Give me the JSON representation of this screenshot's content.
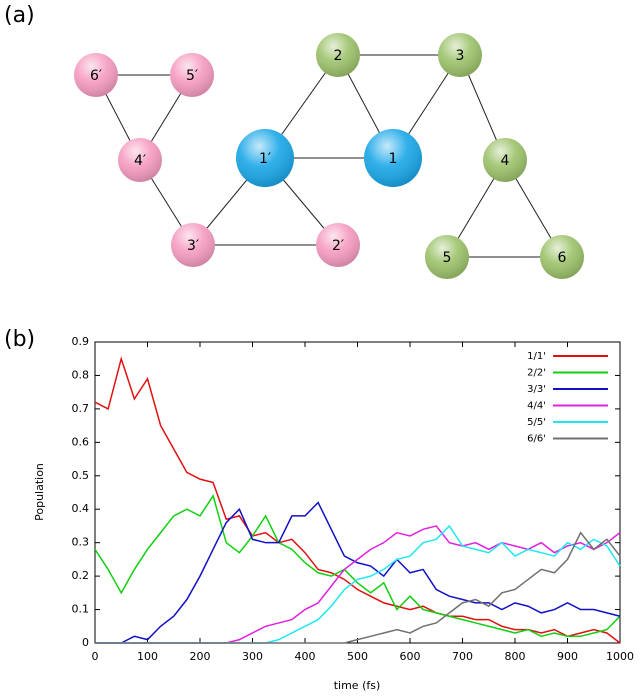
{
  "panel_a": {
    "label": "(a)",
    "nodes": [
      {
        "label": "6′",
        "color": "#f59bc0"
      },
      {
        "label": "5′",
        "color": "#f59bc0"
      },
      {
        "label": "4′",
        "color": "#f59bc0"
      },
      {
        "label": "3′",
        "color": "#f59bc0"
      },
      {
        "label": "2′",
        "color": "#f59bc0"
      },
      {
        "label": "1′",
        "color": "#1aa7e8"
      },
      {
        "label": "1",
        "color": "#1aa7e8"
      },
      {
        "label": "2",
        "color": "#9cc26a"
      },
      {
        "label": "3",
        "color": "#9cc26a"
      },
      {
        "label": "4",
        "color": "#9cc26a"
      },
      {
        "label": "5",
        "color": "#9cc26a"
      },
      {
        "label": "6",
        "color": "#9cc26a"
      }
    ]
  },
  "chart_data": {
    "type": "line",
    "panel_label": "(b)",
    "x_label": "time (fs)",
    "y_label": "Population",
    "x": [
      0,
      25,
      50,
      75,
      100,
      125,
      150,
      175,
      200,
      225,
      250,
      275,
      300,
      325,
      350,
      375,
      400,
      425,
      450,
      475,
      500,
      525,
      550,
      575,
      600,
      625,
      650,
      675,
      700,
      725,
      750,
      775,
      800,
      825,
      850,
      875,
      900,
      925,
      950,
      975,
      1000
    ],
    "series": [
      {
        "name": "1/1'",
        "color": "#e01010",
        "values": [
          0.72,
          0.7,
          0.85,
          0.73,
          0.79,
          0.65,
          0.58,
          0.51,
          0.49,
          0.48,
          0.37,
          0.38,
          0.32,
          0.33,
          0.3,
          0.31,
          0.27,
          0.22,
          0.21,
          0.19,
          0.16,
          0.14,
          0.12,
          0.11,
          0.1,
          0.11,
          0.09,
          0.08,
          0.08,
          0.07,
          0.07,
          0.05,
          0.04,
          0.04,
          0.03,
          0.04,
          0.02,
          0.03,
          0.04,
          0.03,
          0.0
        ]
      },
      {
        "name": "2/2'",
        "color": "#10d010",
        "values": [
          0.28,
          0.22,
          0.15,
          0.22,
          0.28,
          0.33,
          0.38,
          0.4,
          0.38,
          0.44,
          0.3,
          0.27,
          0.32,
          0.38,
          0.3,
          0.28,
          0.24,
          0.21,
          0.2,
          0.22,
          0.18,
          0.15,
          0.18,
          0.1,
          0.14,
          0.1,
          0.09,
          0.08,
          0.07,
          0.06,
          0.05,
          0.04,
          0.03,
          0.04,
          0.02,
          0.03,
          0.02,
          0.02,
          0.03,
          0.04,
          0.08
        ]
      },
      {
        "name": "3/3'",
        "color": "#1010c8",
        "values": [
          0,
          0,
          0,
          0.02,
          0.01,
          0.05,
          0.08,
          0.13,
          0.2,
          0.28,
          0.36,
          0.4,
          0.31,
          0.3,
          0.3,
          0.38,
          0.38,
          0.42,
          0.34,
          0.26,
          0.24,
          0.23,
          0.2,
          0.25,
          0.21,
          0.22,
          0.16,
          0.14,
          0.13,
          0.12,
          0.12,
          0.1,
          0.12,
          0.11,
          0.09,
          0.1,
          0.12,
          0.1,
          0.1,
          0.09,
          0.08
        ]
      },
      {
        "name": "4/4'",
        "color": "#e020e0",
        "values": [
          0,
          0,
          0,
          0,
          0,
          0,
          0,
          0,
          0,
          0,
          0,
          0.01,
          0.03,
          0.05,
          0.06,
          0.07,
          0.1,
          0.12,
          0.17,
          0.22,
          0.25,
          0.28,
          0.3,
          0.33,
          0.32,
          0.34,
          0.35,
          0.3,
          0.29,
          0.3,
          0.28,
          0.3,
          0.29,
          0.28,
          0.3,
          0.27,
          0.29,
          0.3,
          0.28,
          0.3,
          0.33
        ]
      },
      {
        "name": "5/5'",
        "color": "#20e8f0",
        "values": [
          0,
          0,
          0,
          0,
          0,
          0,
          0,
          0,
          0,
          0,
          0,
          0,
          0,
          0,
          0.01,
          0.03,
          0.05,
          0.07,
          0.11,
          0.16,
          0.19,
          0.2,
          0.22,
          0.25,
          0.26,
          0.3,
          0.31,
          0.35,
          0.29,
          0.28,
          0.27,
          0.3,
          0.26,
          0.28,
          0.27,
          0.26,
          0.3,
          0.28,
          0.31,
          0.29,
          0.23
        ]
      },
      {
        "name": "6/6'",
        "color": "#707070",
        "values": [
          0,
          0,
          0,
          0,
          0,
          0,
          0,
          0,
          0,
          0,
          0,
          0,
          0,
          0,
          0,
          0,
          0,
          0,
          0,
          0,
          0.01,
          0.02,
          0.03,
          0.04,
          0.03,
          0.05,
          0.06,
          0.09,
          0.12,
          0.13,
          0.11,
          0.15,
          0.16,
          0.19,
          0.22,
          0.21,
          0.25,
          0.33,
          0.28,
          0.31,
          0.26
        ]
      }
    ],
    "xlim": [
      0,
      1000
    ],
    "xticks": [
      0,
      100,
      200,
      300,
      400,
      500,
      600,
      700,
      800,
      900,
      1000
    ],
    "ylim": [
      0,
      0.9
    ],
    "yticks": [
      0,
      0.1,
      0.2,
      0.3,
      0.4,
      0.5,
      0.6,
      0.7,
      0.8,
      0.9
    ],
    "legend": "upper right"
  }
}
